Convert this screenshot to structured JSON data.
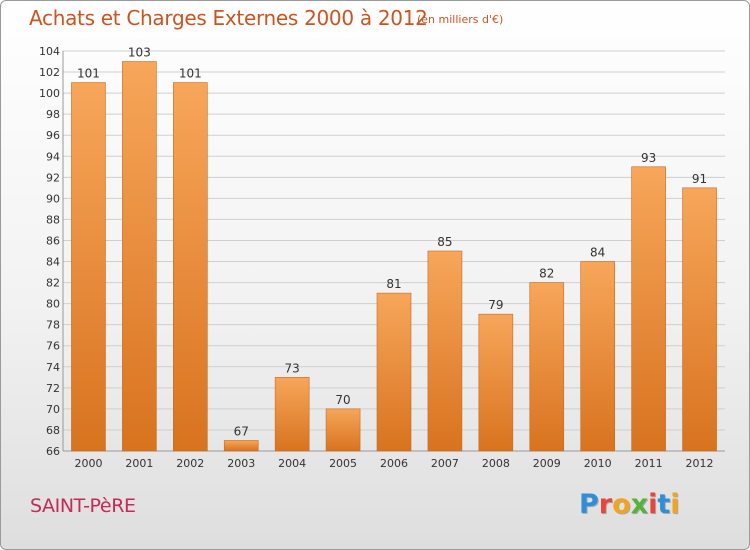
{
  "header": {
    "title": "Achats et Charges Externes 2000 à 2012",
    "subtitle": "(en milliers d'€)"
  },
  "footer": {
    "city": "SAINT-PèRE",
    "logo_letters": [
      "P",
      "r",
      "o",
      "x",
      "i",
      "t",
      "i"
    ],
    "logo_colors": [
      "#2e8fd8",
      "#e8463b",
      "#f2a41c",
      "#55b33b",
      "#e8463b",
      "#2e8fd8",
      "#f2a41c"
    ]
  },
  "colors": {
    "bar_top": "#f7a65a",
    "bar_bottom": "#d8731f",
    "bar_edge": "#c76a1f",
    "grid": "#cfcfcf",
    "axis_text": "#333333",
    "title": "#d0521f"
  },
  "chart_data": {
    "type": "bar",
    "categories": [
      "2000",
      "2001",
      "2002",
      "2003",
      "2004",
      "2005",
      "2006",
      "2007",
      "2008",
      "2009",
      "2010",
      "2011",
      "2012"
    ],
    "values": [
      101,
      103,
      101,
      67,
      73,
      70,
      81,
      85,
      79,
      82,
      84,
      93,
      91
    ],
    "ylim": [
      66,
      104
    ],
    "yticks": [
      66,
      68,
      70,
      72,
      74,
      76,
      78,
      80,
      82,
      84,
      86,
      88,
      90,
      92,
      94,
      96,
      98,
      100,
      102,
      104
    ],
    "grid": true,
    "data_labels": true
  }
}
